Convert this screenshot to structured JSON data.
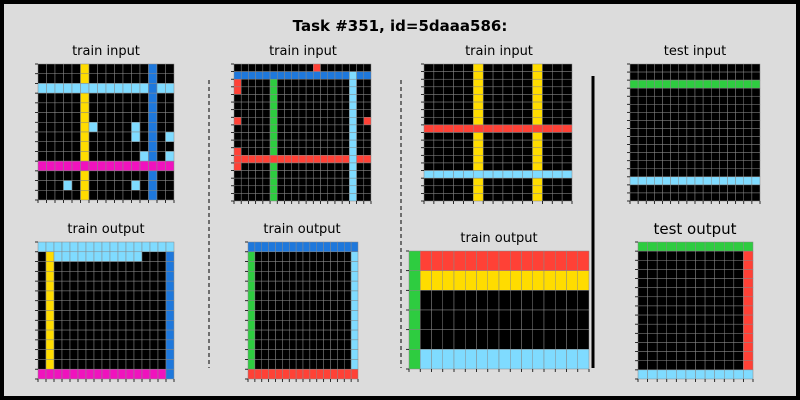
{
  "header": {
    "title": "Task #351, id=5daaa586:"
  },
  "colors": {
    "0": "#000000",
    "1": "#1e78dc",
    "2": "#ff4136",
    "3": "#2ecc40",
    "4": "#ffdc00",
    "5": "#aaaaaa",
    "6": "#f012be",
    "7": "#ff851b",
    "8": "#7fdbff",
    "9": "#870c25",
    "grid_line": "#888888",
    "frame": "#000000",
    "background": "#dcdcdc"
  },
  "panels": [
    {
      "id": "p1",
      "title": "train input",
      "grid": [
        "0000040000000100",
        "0000040000000100",
        "8888888888888188",
        "0000040000000100",
        "0000040000000100",
        "0000040000000100",
        "0000048000080100",
        "0000040000080108",
        "0000040000000100",
        "0000040000008108",
        "6666666666666666",
        "0000040000000100",
        "0008040000080100",
        "0000040000000100"
      ]
    },
    {
      "id": "p2",
      "title": "train input",
      "grid": [
        "0000000000020000000",
        "1111111111111111811",
        "2000030000000000800",
        "2000030000000000800",
        "0000030000000000800",
        "0000030000000000800",
        "0000030000000000800",
        "2000030000000000802",
        "0000030000000000800",
        "0000030000000000800",
        "0000030000000000800",
        "2000030000000000800",
        "2222222222222222822",
        "2000030000000000800",
        "0000030000000000800",
        "0000030000000000800",
        "0000030000000000800",
        "0000030000000000800"
      ]
    },
    {
      "id": "p3",
      "title": "train input",
      "grid": [
        "000004000004000",
        "000004000004000",
        "000004000004000",
        "000004000004000",
        "000004000004000",
        "000004000004000",
        "000004000004000",
        "000004000004000",
        "222222222222222",
        "000004000004000",
        "000004000004000",
        "000004000004000",
        "000004000004000",
        "000004000004000",
        "888888888888888",
        "000004000004000",
        "000004000004000",
        "000004000004000"
      ]
    },
    {
      "id": "p4",
      "title": "test input",
      "grid": [
        "0000000000000000",
        "0000000000000000",
        "3333333333333333",
        "0000000000000000",
        "0000000000000000",
        "0000000000000000",
        "0000000000000000",
        "0000000000000000",
        "0000000000000000",
        "0000000000000000",
        "0000000000000000",
        "0000000000000000",
        "0000000000000000",
        "0000000000000000",
        "8888888888888888",
        "0000000000000000",
        "0000000000000000"
      ]
    },
    {
      "id": "p5",
      "title": "train output",
      "grid": [
        "88888888888888888",
        "04888888888880001",
        "04000000000000001",
        "04000000000000001",
        "04000000000000001",
        "04000000000000001",
        "04000000000000001",
        "04000000000000001",
        "04000000000000001",
        "04000000000000001",
        "04000000000000001",
        "04000000000000001",
        "04000000000000001",
        "66666666666666661"
      ]
    },
    {
      "id": "p6",
      "title": "train output",
      "grid": [
        "1111111111111111",
        "3000000000000008",
        "3000000000000008",
        "3000000000000008",
        "3000000000000008",
        "3000000000000008",
        "3000000000000008",
        "3000000000000008",
        "3000000000000008",
        "3000000000000008",
        "3000000000000008",
        "3000000000000008",
        "3000000000000008",
        "2222222222222222"
      ]
    },
    {
      "id": "p7",
      "title": "train output",
      "grid": [
        "3222222222222222",
        "3444444444444444",
        "3000000000000000",
        "3000000000000000",
        "3000000000000000",
        "3888888888888888"
      ]
    },
    {
      "id": "p8",
      "title": "test output",
      "grid": [
        "333333333333",
        "000000000002",
        "000000000002",
        "000000000002",
        "000000000002",
        "000000000002",
        "000000000002",
        "000000000002",
        "000000000002",
        "000000000002",
        "000000000002",
        "000000000002",
        "000000000002",
        "000000000002",
        "888888888888"
      ]
    }
  ]
}
